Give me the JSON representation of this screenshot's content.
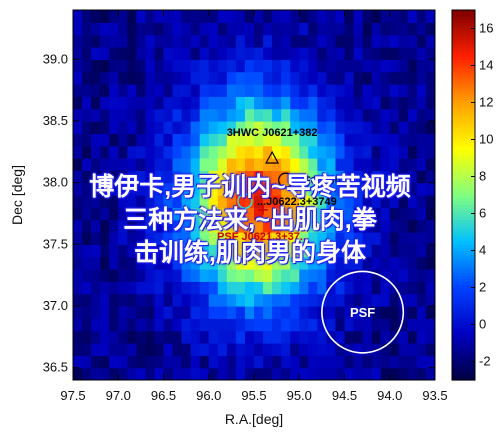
{
  "chart_data": {
    "type": "heatmap",
    "xlabel": "R.A.[deg]",
    "ylabel": "Dec [deg]",
    "xlim": [
      97.5,
      93.5
    ],
    "ylim": [
      36.4,
      39.4
    ],
    "x_ticks": [
      "97.5",
      "97.0",
      "96.5",
      "96.0",
      "95.5",
      "95.0",
      "94.5",
      "94.0",
      "93.5"
    ],
    "y_ticks": [
      "36.5",
      "37.0",
      "37.5",
      "38.0",
      "38.5",
      "39.0"
    ],
    "colorbar_ticks": [
      "-2",
      "0",
      "2",
      "4",
      "6",
      "8",
      "10",
      "12",
      "14",
      "16"
    ],
    "colorbar_range": [
      -3,
      17
    ],
    "peak": {
      "ra": 95.45,
      "dec": 37.85,
      "value": 16
    },
    "colormap": [
      "#000040",
      "#0000c0",
      "#0040ff",
      "#00c0ff",
      "#80ff80",
      "#ffff00",
      "#ffa000",
      "#ff2000",
      "#800000"
    ],
    "annotations": [
      {
        "label": "3HWC J0621+382",
        "marker": "triangle",
        "ra": 95.3,
        "dec": 38.2,
        "color": "#000000"
      },
      {
        "label": "4FGL J0...",
        "marker": "circle",
        "ra": 95.15,
        "dec": 38.02,
        "color": "#000000"
      },
      {
        "label": "...J0622.3+3749",
        "marker": "circle",
        "ra": 95.6,
        "dec": 37.85,
        "color": "#00ffff"
      },
      {
        "label": "PSF J0621.3+37...",
        "marker": "cross",
        "ra": 95.4,
        "dec": 37.78,
        "color": "#cc0000"
      }
    ],
    "psf": {
      "label": "PSF",
      "ra": 94.3,
      "dec": 36.95,
      "radius_deg": 0.45
    }
  },
  "overlay_text": {
    "line1": "博伊卡,男子训内~导疼苦视频",
    "line2": "三种方法来,~出肌肉,拳",
    "line3": "击训练,肌肉男的身体"
  }
}
